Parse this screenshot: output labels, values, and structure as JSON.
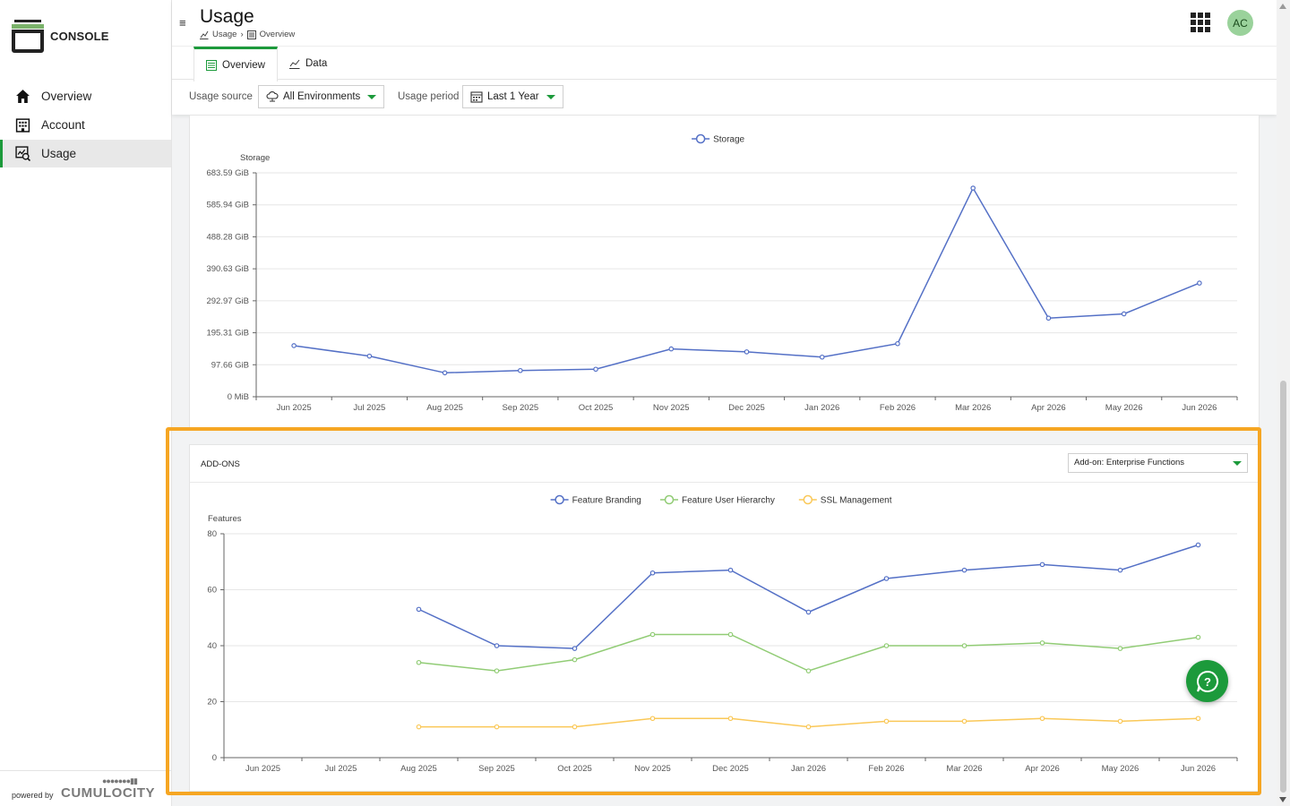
{
  "app": {
    "brand": "CONSOLE",
    "powered_by": "powered by",
    "powered_brand": "CUMULOCITY"
  },
  "sidebar": {
    "items": [
      {
        "label": "Overview",
        "icon": "home-icon"
      },
      {
        "label": "Account",
        "icon": "building-icon"
      },
      {
        "label": "Usage",
        "icon": "usage-icon",
        "active": true
      }
    ]
  },
  "header": {
    "title": "Usage",
    "breadcrumb": [
      "Usage",
      "Overview"
    ],
    "user_initials": "AC",
    "tabs": [
      {
        "label": "Overview",
        "active": true
      },
      {
        "label": "Data"
      }
    ],
    "filters": {
      "source_label": "Usage source",
      "source_value": "All Environments",
      "period_label": "Usage period",
      "period_value": "Last 1 Year"
    }
  },
  "colors": {
    "accent": "#1c9a3b",
    "series_blue": "#5470c6",
    "series_green": "#91cc75",
    "series_yellow": "#fac858",
    "highlight": "#f6a623"
  },
  "addons": {
    "title": "ADD-ONS",
    "select_value": "Add-on: Enterprise Functions"
  },
  "chart_data": [
    {
      "type": "line",
      "ylabel": "Storage",
      "categories": [
        "Jun 2025",
        "Jul 2025",
        "Aug 2025",
        "Sep 2025",
        "Oct 2025",
        "Nov 2025",
        "Dec 2025",
        "Jan 2026",
        "Feb 2026",
        "Mar 2026",
        "Apr 2026",
        "May 2026",
        "Jun 2026"
      ],
      "ytick_labels": [
        "0 MiB",
        "97.66 GiB",
        "195.31 GiB",
        "292.97 GiB",
        "390.63 GiB",
        "488.28 GiB",
        "585.94 GiB",
        "683.59 GiB"
      ],
      "ylim": [
        0,
        683.59
      ],
      "y_unit": "GiB",
      "series": [
        {
          "name": "Storage",
          "color": "#5470c6",
          "values": [
            156,
            124,
            73,
            80,
            84,
            146,
            137,
            121,
            162,
            637,
            240,
            253,
            347
          ]
        }
      ],
      "legend": "top-center",
      "grid": true
    },
    {
      "type": "line",
      "ylabel": "Features",
      "categories": [
        "Jun 2025",
        "Jul 2025",
        "Aug 2025",
        "Sep 2025",
        "Oct 2025",
        "Nov 2025",
        "Dec 2025",
        "Jan 2026",
        "Feb 2026",
        "Mar 2026",
        "Apr 2026",
        "May 2026",
        "Jun 2026"
      ],
      "ytick_labels": [
        "0",
        "20",
        "40",
        "60",
        "80"
      ],
      "ylim": [
        0,
        80
      ],
      "series": [
        {
          "name": "Feature Branding",
          "color": "#5470c6",
          "values": [
            null,
            null,
            53,
            40,
            39,
            66,
            67,
            52,
            64,
            67,
            69,
            67,
            76
          ]
        },
        {
          "name": "Feature User Hierarchy",
          "color": "#91cc75",
          "values": [
            null,
            null,
            34,
            31,
            35,
            44,
            44,
            31,
            40,
            40,
            41,
            39,
            43
          ]
        },
        {
          "name": "SSL Management",
          "color": "#fac858",
          "values": [
            null,
            null,
            11,
            11,
            11,
            14,
            14,
            11,
            13,
            13,
            14,
            13,
            14
          ]
        }
      ],
      "legend": "top-center",
      "grid": true
    }
  ]
}
